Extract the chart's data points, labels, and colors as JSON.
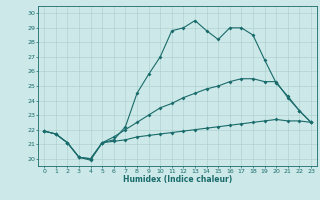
{
  "xlabel": "Humidex (Indice chaleur)",
  "xlim": [
    -0.5,
    23.5
  ],
  "ylim": [
    19.5,
    30.5
  ],
  "xticks": [
    0,
    1,
    2,
    3,
    4,
    5,
    6,
    7,
    8,
    9,
    10,
    11,
    12,
    13,
    14,
    15,
    16,
    17,
    18,
    19,
    20,
    21,
    22,
    23
  ],
  "yticks": [
    20,
    21,
    22,
    23,
    24,
    25,
    26,
    27,
    28,
    29,
    30
  ],
  "bg_color": "#cce8e8",
  "grid_color": "#aacece",
  "line_color": "#1a6b6b",
  "line1_x": [
    0,
    1,
    2,
    3,
    4,
    5,
    6,
    7,
    8,
    9,
    10,
    11,
    12,
    13,
    14,
    15,
    16,
    17,
    18,
    19,
    20,
    21,
    22,
    23
  ],
  "line1_y": [
    21.9,
    21.7,
    21.1,
    20.1,
    19.9,
    21.1,
    21.3,
    22.2,
    24.5,
    25.8,
    27.0,
    28.8,
    29.0,
    29.5,
    28.8,
    28.2,
    29.0,
    29.0,
    28.5,
    26.8,
    25.2,
    24.3,
    23.3,
    22.5
  ],
  "line2_x": [
    0,
    1,
    2,
    3,
    4,
    5,
    6,
    7,
    8,
    9,
    10,
    11,
    12,
    13,
    14,
    15,
    16,
    17,
    18,
    19,
    20,
    21,
    22,
    23
  ],
  "line2_y": [
    21.9,
    21.7,
    21.1,
    20.1,
    20.0,
    21.1,
    21.5,
    22.0,
    22.5,
    23.0,
    23.5,
    23.8,
    24.2,
    24.5,
    24.8,
    25.0,
    25.3,
    25.5,
    25.5,
    25.3,
    25.3,
    24.2,
    23.3,
    22.5
  ],
  "line3_x": [
    0,
    1,
    2,
    3,
    4,
    5,
    6,
    7,
    8,
    9,
    10,
    11,
    12,
    13,
    14,
    15,
    16,
    17,
    18,
    19,
    20,
    21,
    22,
    23
  ],
  "line3_y": [
    21.9,
    21.7,
    21.1,
    20.1,
    20.0,
    21.1,
    21.2,
    21.3,
    21.5,
    21.6,
    21.7,
    21.8,
    21.9,
    22.0,
    22.1,
    22.2,
    22.3,
    22.4,
    22.5,
    22.6,
    22.7,
    22.6,
    22.6,
    22.5
  ]
}
